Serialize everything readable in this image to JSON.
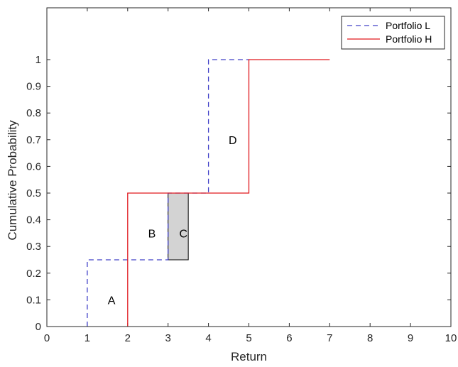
{
  "chart_data": {
    "type": "line",
    "title": "",
    "xlabel": "Return",
    "ylabel": "Cumulative Probability",
    "xlim": [
      0,
      10
    ],
    "ylim": [
      0,
      1.1
    ],
    "xticks": [
      0,
      1,
      2,
      3,
      4,
      5,
      6,
      7,
      8,
      9,
      10
    ],
    "xtick_labels": [
      "0",
      "1",
      "2",
      "3",
      "4",
      "5",
      "6",
      "7",
      "8",
      "9",
      "10"
    ],
    "yticks": [
      0,
      0.1,
      0.2,
      0.3,
      0.4,
      0.5,
      0.6,
      0.7,
      0.8,
      0.9,
      1
    ],
    "ytick_labels": [
      "0",
      "0.1",
      "0.2",
      "0.3",
      "0.4",
      "0.5",
      "0.6",
      "0.7",
      "0.8",
      "0.9",
      "1"
    ],
    "grid": false,
    "legend_position": "top-right",
    "series": [
      {
        "name": "Portfolio L",
        "style": "dashed",
        "color": "#4040c8",
        "x": [
          1,
          1,
          3,
          3,
          4,
          4,
          5
        ],
        "y": [
          0,
          0.25,
          0.25,
          0.5,
          0.5,
          1,
          1
        ]
      },
      {
        "name": "Portfolio H",
        "style": "solid",
        "color": "#e0191e",
        "x": [
          2,
          2,
          5,
          5,
          7
        ],
        "y": [
          0,
          0.5,
          0.5,
          1,
          1
        ]
      }
    ],
    "shaded_region": {
      "label": "C",
      "x": [
        3,
        3.5
      ],
      "y": [
        0.25,
        0.5
      ],
      "fill": "#d3d3d3"
    },
    "annotations": [
      {
        "text": "A",
        "x": 1.6,
        "y": 0.1
      },
      {
        "text": "B",
        "x": 2.6,
        "y": 0.35
      },
      {
        "text": "C",
        "x": 3.38,
        "y": 0.35
      },
      {
        "text": "D",
        "x": 4.6,
        "y": 0.7
      }
    ]
  }
}
